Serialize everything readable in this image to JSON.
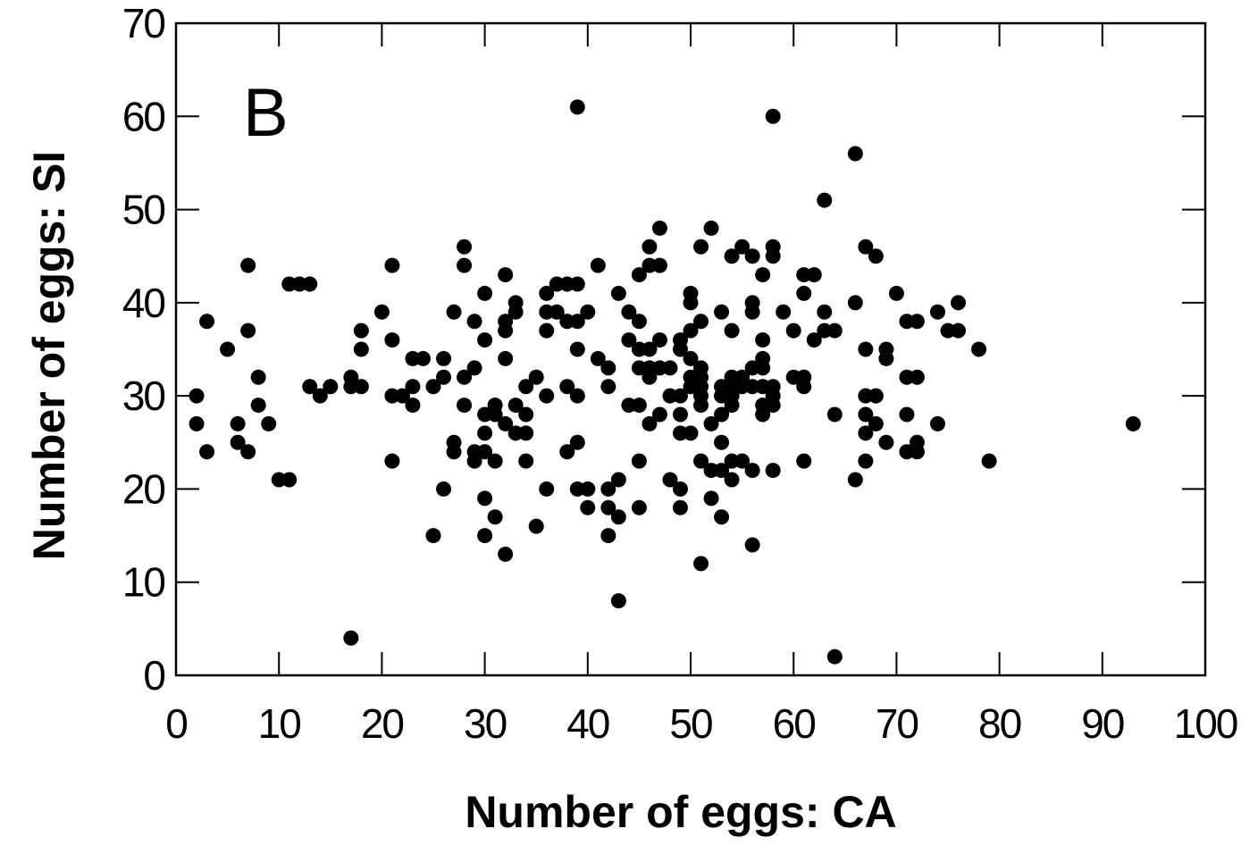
{
  "panel_label": "B",
  "colors": {
    "marker": "#000000",
    "axes": "#000000",
    "background": "#ffffff"
  },
  "chart_data": {
    "type": "scatter",
    "xlabel": "Number of eggs: CA",
    "ylabel": "Number of eggs: SI",
    "xlim": [
      0,
      100
    ],
    "ylim": [
      0,
      70
    ],
    "xticks": [
      0,
      10,
      20,
      30,
      40,
      50,
      60,
      70,
      80,
      90,
      100
    ],
    "yticks": [
      0,
      10,
      20,
      30,
      40,
      50,
      60,
      70
    ],
    "grid": false,
    "legend": "none",
    "points": [
      [
        2,
        30
      ],
      [
        2,
        27
      ],
      [
        3,
        38
      ],
      [
        3,
        24
      ],
      [
        5,
        35
      ],
      [
        6,
        27
      ],
      [
        6,
        25
      ],
      [
        7,
        44
      ],
      [
        7,
        37
      ],
      [
        7,
        24
      ],
      [
        8,
        32
      ],
      [
        8,
        29
      ],
      [
        9,
        27
      ],
      [
        10,
        21
      ],
      [
        11,
        21
      ],
      [
        11,
        42
      ],
      [
        12,
        42
      ],
      [
        13,
        42
      ],
      [
        13,
        31
      ],
      [
        14,
        30
      ],
      [
        15,
        31
      ],
      [
        17,
        4
      ],
      [
        17,
        32
      ],
      [
        17,
        31
      ],
      [
        18,
        37
      ],
      [
        18,
        35
      ],
      [
        18,
        31
      ],
      [
        20,
        39
      ],
      [
        21,
        44
      ],
      [
        21,
        36
      ],
      [
        21,
        30
      ],
      [
        21,
        23
      ],
      [
        22,
        30
      ],
      [
        23,
        34
      ],
      [
        23,
        31
      ],
      [
        23,
        29
      ],
      [
        24,
        34
      ],
      [
        25,
        31
      ],
      [
        25,
        15
      ],
      [
        26,
        34
      ],
      [
        26,
        32
      ],
      [
        26,
        20
      ],
      [
        27,
        39
      ],
      [
        27,
        25
      ],
      [
        27,
        24
      ],
      [
        28,
        46
      ],
      [
        28,
        44
      ],
      [
        28,
        32
      ],
      [
        28,
        29
      ],
      [
        29,
        38
      ],
      [
        29,
        33
      ],
      [
        29,
        24
      ],
      [
        29,
        23
      ],
      [
        30,
        41
      ],
      [
        30,
        36
      ],
      [
        30,
        28
      ],
      [
        30,
        26
      ],
      [
        30,
        24
      ],
      [
        30,
        19
      ],
      [
        30,
        15
      ],
      [
        31,
        29
      ],
      [
        31,
        28
      ],
      [
        31,
        23
      ],
      [
        31,
        17
      ],
      [
        32,
        43
      ],
      [
        32,
        38
      ],
      [
        32,
        37
      ],
      [
        32,
        34
      ],
      [
        32,
        27
      ],
      [
        32,
        13
      ],
      [
        33,
        40
      ],
      [
        33,
        39
      ],
      [
        33,
        29
      ],
      [
        33,
        26
      ],
      [
        34,
        31
      ],
      [
        34,
        28
      ],
      [
        34,
        26
      ],
      [
        34,
        23
      ],
      [
        35,
        32
      ],
      [
        35,
        16
      ],
      [
        36,
        41
      ],
      [
        36,
        39
      ],
      [
        36,
        37
      ],
      [
        36,
        30
      ],
      [
        36,
        20
      ],
      [
        37,
        42
      ],
      [
        37,
        39
      ],
      [
        38,
        42
      ],
      [
        38,
        38
      ],
      [
        38,
        31
      ],
      [
        38,
        24
      ],
      [
        39,
        61
      ],
      [
        39,
        42
      ],
      [
        39,
        38
      ],
      [
        39,
        35
      ],
      [
        39,
        30
      ],
      [
        39,
        25
      ],
      [
        39,
        20
      ],
      [
        40,
        39
      ],
      [
        40,
        20
      ],
      [
        40,
        18
      ],
      [
        41,
        44
      ],
      [
        41,
        34
      ],
      [
        42,
        33
      ],
      [
        42,
        31
      ],
      [
        42,
        20
      ],
      [
        42,
        18
      ],
      [
        42,
        15
      ],
      [
        43,
        41
      ],
      [
        43,
        21
      ],
      [
        43,
        17
      ],
      [
        43,
        8
      ],
      [
        44,
        39
      ],
      [
        44,
        36
      ],
      [
        44,
        29
      ],
      [
        45,
        43
      ],
      [
        45,
        38
      ],
      [
        45,
        35
      ],
      [
        45,
        33
      ],
      [
        45,
        29
      ],
      [
        45,
        23
      ],
      [
        45,
        18
      ],
      [
        46,
        46
      ],
      [
        46,
        44
      ],
      [
        46,
        35
      ],
      [
        46,
        33
      ],
      [
        46,
        32
      ],
      [
        46,
        27
      ],
      [
        47,
        48
      ],
      [
        47,
        44
      ],
      [
        47,
        36
      ],
      [
        47,
        33
      ],
      [
        47,
        28
      ],
      [
        48,
        33
      ],
      [
        48,
        30
      ],
      [
        48,
        21
      ],
      [
        49,
        36
      ],
      [
        49,
        35
      ],
      [
        49,
        30
      ],
      [
        49,
        28
      ],
      [
        49,
        26
      ],
      [
        49,
        20
      ],
      [
        49,
        18
      ],
      [
        50,
        41
      ],
      [
        50,
        40
      ],
      [
        50,
        37
      ],
      [
        50,
        34
      ],
      [
        50,
        32
      ],
      [
        50,
        31
      ],
      [
        50,
        26
      ],
      [
        51,
        38
      ],
      [
        51,
        46
      ],
      [
        51,
        33
      ],
      [
        51,
        32
      ],
      [
        51,
        31
      ],
      [
        51,
        30
      ],
      [
        51,
        29
      ],
      [
        51,
        23
      ],
      [
        51,
        12
      ],
      [
        52,
        48
      ],
      [
        52,
        27
      ],
      [
        52,
        22
      ],
      [
        52,
        19
      ],
      [
        53,
        39
      ],
      [
        53,
        31
      ],
      [
        53,
        30
      ],
      [
        53,
        28
      ],
      [
        53,
        25
      ],
      [
        53,
        22
      ],
      [
        53,
        17
      ],
      [
        54,
        45
      ],
      [
        54,
        37
      ],
      [
        54,
        32
      ],
      [
        54,
        31
      ],
      [
        54,
        30
      ],
      [
        54,
        29
      ],
      [
        54,
        23
      ],
      [
        54,
        21
      ],
      [
        55,
        46
      ],
      [
        55,
        32
      ],
      [
        55,
        31
      ],
      [
        55,
        23
      ],
      [
        56,
        45
      ],
      [
        56,
        40
      ],
      [
        56,
        39
      ],
      [
        56,
        33
      ],
      [
        56,
        31
      ],
      [
        56,
        22
      ],
      [
        56,
        14
      ],
      [
        57,
        43
      ],
      [
        57,
        36
      ],
      [
        57,
        34
      ],
      [
        57,
        33
      ],
      [
        57,
        31
      ],
      [
        57,
        29
      ],
      [
        57,
        28
      ],
      [
        58,
        46
      ],
      [
        58,
        45
      ],
      [
        58,
        60
      ],
      [
        58,
        31
      ],
      [
        58,
        30
      ],
      [
        58,
        29
      ],
      [
        58,
        22
      ],
      [
        59,
        39
      ],
      [
        60,
        37
      ],
      [
        60,
        32
      ],
      [
        61,
        43
      ],
      [
        61,
        41
      ],
      [
        61,
        32
      ],
      [
        61,
        31
      ],
      [
        61,
        23
      ],
      [
        62,
        43
      ],
      [
        62,
        36
      ],
      [
        63,
        51
      ],
      [
        63,
        39
      ],
      [
        63,
        37
      ],
      [
        64,
        37
      ],
      [
        64,
        28
      ],
      [
        64,
        2
      ],
      [
        66,
        56
      ],
      [
        66,
        40
      ],
      [
        66,
        21
      ],
      [
        67,
        46
      ],
      [
        67,
        35
      ],
      [
        67,
        30
      ],
      [
        67,
        28
      ],
      [
        67,
        26
      ],
      [
        67,
        23
      ],
      [
        68,
        45
      ],
      [
        68,
        30
      ],
      [
        68,
        27
      ],
      [
        69,
        35
      ],
      [
        69,
        34
      ],
      [
        69,
        25
      ],
      [
        70,
        41
      ],
      [
        71,
        38
      ],
      [
        71,
        32
      ],
      [
        71,
        28
      ],
      [
        71,
        24
      ],
      [
        72,
        38
      ],
      [
        72,
        32
      ],
      [
        72,
        25
      ],
      [
        72,
        24
      ],
      [
        74,
        39
      ],
      [
        74,
        27
      ],
      [
        75,
        37
      ],
      [
        76,
        40
      ],
      [
        76,
        37
      ],
      [
        78,
        35
      ],
      [
        79,
        23
      ],
      [
        93,
        27
      ]
    ]
  }
}
